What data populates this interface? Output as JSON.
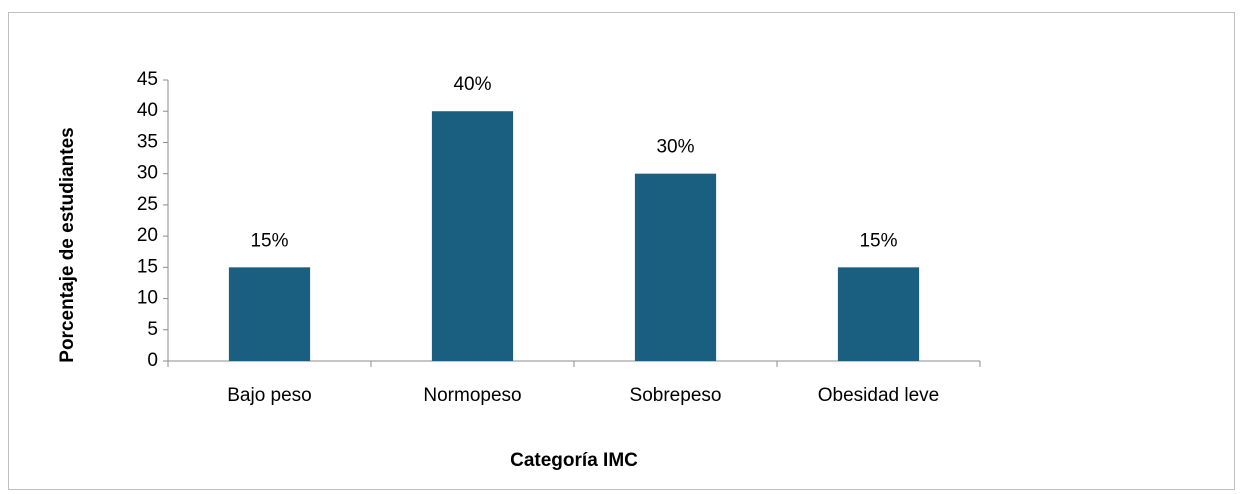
{
  "chart_data": {
    "type": "bar",
    "xlabel": "Categoría IMC",
    "ylabel": "Porcentaje de estudiantes",
    "categories": [
      "Bajo peso",
      "Normopeso",
      "Sobrepeso",
      "Obesidad leve"
    ],
    "values": [
      15,
      40,
      30,
      15
    ],
    "value_labels": [
      "15%",
      "40%",
      "30%",
      "15%"
    ],
    "color": "#1b5f80",
    "ylim": [
      0,
      45
    ],
    "yticks": [
      0,
      5,
      10,
      15,
      20,
      25,
      30,
      35,
      40,
      45
    ],
    "grid": false
  }
}
